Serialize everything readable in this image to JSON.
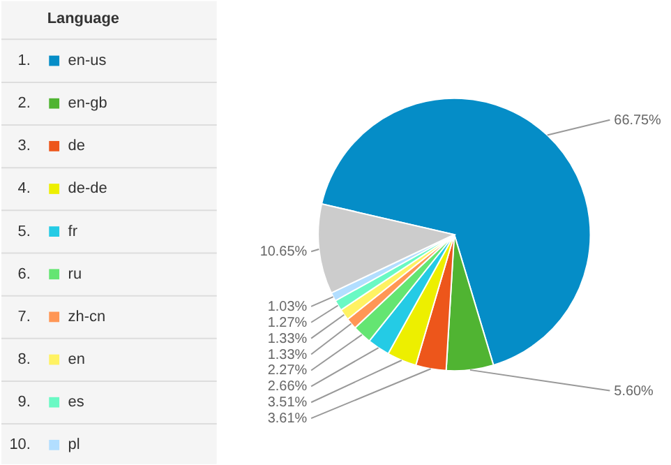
{
  "chart_data": {
    "type": "pie",
    "legend_title": "Language",
    "legend": "left",
    "categories": [
      "en-us",
      "en-gb",
      "de",
      "de-de",
      "fr",
      "ru",
      "zh-cn",
      "en",
      "es",
      "pl",
      null
    ],
    "values": [
      66.75,
      5.6,
      3.61,
      3.51,
      2.66,
      2.27,
      1.33,
      1.33,
      1.27,
      1.03,
      10.65
    ],
    "colors": [
      "#058dc7",
      "#50b432",
      "#ed561b",
      "#edef00",
      "#24cbe5",
      "#64e572",
      "#ff9655",
      "#fff263",
      "#6af9c4",
      "#b2deff",
      "#cccccc"
    ],
    "annotations": [
      "1.",
      "2.",
      "3.",
      "4.",
      "5.",
      "6.",
      "7.",
      "8.",
      "9.",
      "10."
    ],
    "value_labels": [
      "66.75%",
      "5.60%",
      "3.61%",
      "3.51%",
      "2.66%",
      "2.27%",
      "1.33%",
      "1.33%",
      "1.27%",
      "1.03%",
      "10.65%"
    ]
  }
}
